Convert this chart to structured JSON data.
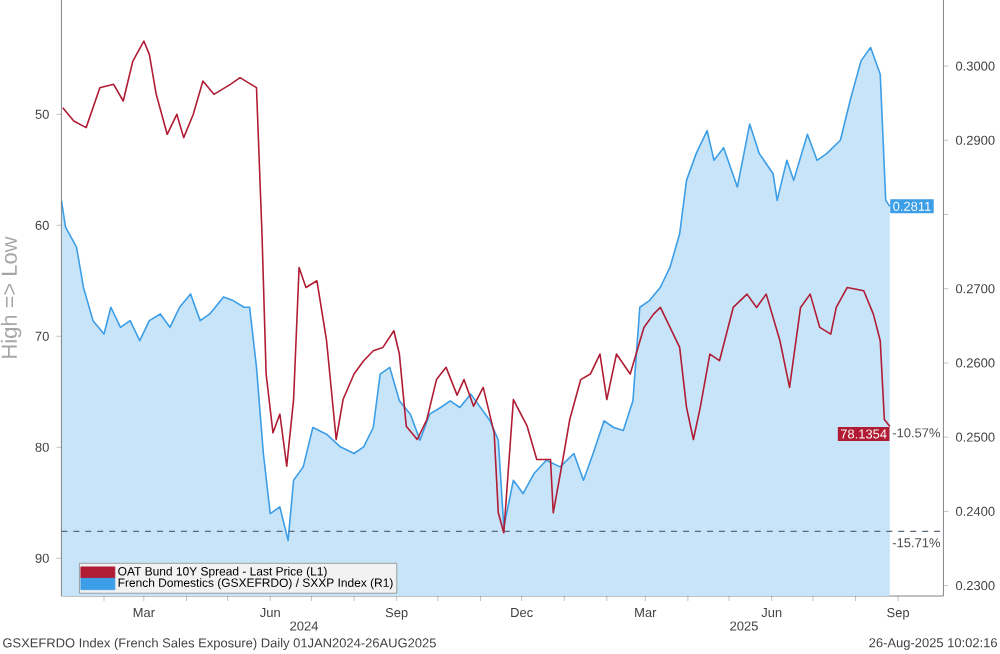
{
  "chart_data": {
    "type": "line",
    "ylabel": "High => Low",
    "xlim": [
      "2024-01-01",
      "2025-10-04"
    ],
    "xticks": [
      {
        "value": "2024-02-01",
        "label": null
      },
      {
        "value": "2024-03-01",
        "label": "Mar"
      },
      {
        "value": "2024-04-01",
        "label": null
      },
      {
        "value": "2024-05-01",
        "label": null
      },
      {
        "value": "2024-06-01",
        "label": "Jun"
      },
      {
        "value": "2024-07-01",
        "label": null
      },
      {
        "value": "2024-08-01",
        "label": null
      },
      {
        "value": "2024-09-01",
        "label": "Sep"
      },
      {
        "value": "2024-10-01",
        "label": null
      },
      {
        "value": "2024-11-01",
        "label": null
      },
      {
        "value": "2024-12-01",
        "label": "Dec"
      },
      {
        "value": "2025-01-01",
        "label": null
      },
      {
        "value": "2025-02-01",
        "label": null
      },
      {
        "value": "2025-03-01",
        "label": "Mar"
      },
      {
        "value": "2025-04-01",
        "label": null
      },
      {
        "value": "2025-05-01",
        "label": null
      },
      {
        "value": "2025-06-01",
        "label": "Jun"
      },
      {
        "value": "2025-07-01",
        "label": null
      },
      {
        "value": "2025-08-01",
        "label": null
      },
      {
        "value": "2025-09-01",
        "label": "Sep"
      }
    ],
    "ylim": [
      93.4,
      39.7
    ],
    "yticks": [
      50,
      60,
      70,
      80,
      90
    ],
    "y2lim": [
      0.2286,
      0.3089
    ],
    "y2ticks": [
      {
        "value": 0.23,
        "label": "0.2300"
      },
      {
        "value": 0.24,
        "label": "0.2400"
      },
      {
        "value": 0.25,
        "label": "0.2500"
      },
      {
        "value": 0.26,
        "label": "0.2600"
      },
      {
        "value": 0.27,
        "label": "0.2700"
      },
      {
        "value": 0.28,
        "label": null
      },
      {
        "value": 0.29,
        "label": "0.2900"
      },
      {
        "value": 0.3,
        "label": "0.3000"
      }
    ],
    "legend": "bottom left",
    "series": [
      {
        "name": "French Domestics (GSXEFRDO) / SXXP Index (R1)",
        "type": "area",
        "axis": "y2",
        "color": "#3c9ee6",
        "x": [
          "2024-01-01",
          "2024-01-04",
          "2024-01-12",
          "2024-01-17",
          "2024-01-24",
          "2024-02-01",
          "2024-02-06",
          "2024-02-13",
          "2024-02-20",
          "2024-02-27",
          "2024-03-05",
          "2024-03-13",
          "2024-03-20",
          "2024-03-27",
          "2024-04-04",
          "2024-04-11",
          "2024-04-18",
          "2024-04-28",
          "2024-05-05",
          "2024-05-13",
          "2024-05-17",
          "2024-05-22",
          "2024-05-27",
          "2024-06-01",
          "2024-06-08",
          "2024-06-14",
          "2024-06-18",
          "2024-06-25",
          "2024-07-02",
          "2024-07-12",
          "2024-07-22",
          "2024-08-01",
          "2024-08-08",
          "2024-08-15",
          "2024-08-20",
          "2024-08-27",
          "2024-09-03",
          "2024-09-11",
          "2024-09-18",
          "2024-09-25",
          "2024-10-03",
          "2024-10-10",
          "2024-10-17",
          "2024-10-25",
          "2024-11-01",
          "2024-11-08",
          "2024-11-14",
          "2024-11-18",
          "2024-11-25",
          "2024-12-02",
          "2024-12-10",
          "2024-12-19",
          "2024-12-29",
          "2025-01-08",
          "2025-01-15",
          "2025-01-22",
          "2025-01-30",
          "2025-02-06",
          "2025-02-13",
          "2025-02-20",
          "2025-02-25",
          "2025-03-04",
          "2025-03-12",
          "2025-03-19",
          "2025-03-26",
          "2025-03-31",
          "2025-04-07",
          "2025-04-15",
          "2025-04-20",
          "2025-04-27",
          "2025-05-07",
          "2025-05-16",
          "2025-05-23",
          "2025-06-02",
          "2025-06-05",
          "2025-06-12",
          "2025-06-17",
          "2025-06-27",
          "2025-07-04",
          "2025-07-11",
          "2025-07-21",
          "2025-07-28",
          "2025-08-05",
          "2025-08-12",
          "2025-08-19",
          "2025-08-23",
          "2025-08-26"
        ],
        "values": [
          0.2819,
          0.2783,
          0.2756,
          0.2702,
          0.2657,
          0.2639,
          0.2675,
          0.2648,
          0.2657,
          0.263,
          0.2657,
          0.2666,
          0.2648,
          0.2675,
          0.2693,
          0.2657,
          0.2666,
          0.2689,
          0.2684,
          0.2675,
          0.2675,
          0.2594,
          0.2478,
          0.2397,
          0.2406,
          0.2361,
          0.2442,
          0.246,
          0.2513,
          0.2504,
          0.2487,
          0.2478,
          0.2487,
          0.2513,
          0.2585,
          0.2594,
          0.2549,
          0.2531,
          0.2496,
          0.2531,
          0.254,
          0.2549,
          0.254,
          0.2558,
          0.254,
          0.2522,
          0.2496,
          0.2379,
          0.2442,
          0.2424,
          0.2451,
          0.2469,
          0.246,
          0.2478,
          0.2442,
          0.2478,
          0.2522,
          0.2513,
          0.2509,
          0.2549,
          0.2675,
          0.2684,
          0.2702,
          0.2729,
          0.2774,
          0.2846,
          0.2882,
          0.2913,
          0.2873,
          0.289,
          0.2837,
          0.2922,
          0.2882,
          0.2855,
          0.2819,
          0.2873,
          0.2846,
          0.2908,
          0.2873,
          0.2882,
          0.29,
          0.2953,
          0.3007,
          0.3025,
          0.2989,
          0.2819,
          0.2811
        ],
        "value_labels": [
          null,
          null,
          null,
          null,
          null,
          null,
          null,
          null,
          null,
          null,
          null,
          null,
          null,
          null,
          null,
          null,
          null,
          null,
          null,
          null,
          null,
          null,
          null,
          null,
          null,
          null,
          null,
          null,
          null,
          null,
          null,
          null,
          null,
          null,
          null,
          null,
          null,
          null,
          null,
          null,
          null,
          null,
          null,
          null,
          null,
          null,
          null,
          null,
          null,
          null,
          null,
          null,
          null,
          null,
          null,
          null,
          null,
          null,
          null,
          null,
          null,
          null,
          null,
          null,
          null,
          null,
          null,
          null,
          null,
          null,
          null,
          null,
          null,
          null,
          null,
          null,
          null,
          null,
          null,
          null,
          null,
          null,
          null,
          null,
          null,
          null,
          "0.2811"
        ]
      },
      {
        "name": "OAT Bund 10Y Spread - Last Price (L1)",
        "color": "#b01c34",
        "x": [
          "2024-01-02",
          "2024-01-10",
          "2024-01-19",
          "2024-01-29",
          "2024-02-08",
          "2024-02-15",
          "2024-02-22",
          "2024-03-01",
          "2024-03-05",
          "2024-03-10",
          "2024-03-18",
          "2024-03-25",
          "2024-03-30",
          "2024-04-06",
          "2024-04-13",
          "2024-04-21",
          "2024-05-03",
          "2024-05-10",
          "2024-05-22",
          "2024-05-26",
          "2024-05-29",
          "2024-06-03",
          "2024-06-08",
          "2024-06-13",
          "2024-06-18",
          "2024-06-22",
          "2024-06-27",
          "2024-07-05",
          "2024-07-12",
          "2024-07-19",
          "2024-07-24",
          "2024-08-01",
          "2024-08-08",
          "2024-08-15",
          "2024-08-22",
          "2024-08-30",
          "2024-09-03",
          "2024-09-08",
          "2024-09-16",
          "2024-09-23",
          "2024-09-30",
          "2024-10-07",
          "2024-10-15",
          "2024-10-20",
          "2024-10-27",
          "2024-11-03",
          "2024-11-11",
          "2024-11-14",
          "2024-11-18",
          "2024-11-25",
          "2024-12-05",
          "2024-12-12",
          "2024-12-22",
          "2024-12-24",
          "2024-12-31",
          "2025-01-05",
          "2025-01-13",
          "2025-01-20",
          "2025-01-27",
          "2025-02-01",
          "2025-02-08",
          "2025-02-18",
          "2025-02-28",
          "2025-03-07",
          "2025-03-12",
          "2025-03-19",
          "2025-03-26",
          "2025-03-31",
          "2025-04-05",
          "2025-04-10",
          "2025-04-17",
          "2025-04-24",
          "2025-05-04",
          "2025-05-14",
          "2025-05-21",
          "2025-05-28",
          "2025-06-07",
          "2025-06-14",
          "2025-06-22",
          "2025-06-29",
          "2025-07-06",
          "2025-07-14",
          "2025-07-18",
          "2025-07-26",
          "2025-08-07",
          "2025-08-14",
          "2025-08-19",
          "2025-08-22",
          "2025-08-26"
        ],
        "values": [
          49.4,
          50.6,
          51.2,
          47.6,
          47.3,
          48.8,
          45.2,
          43.4,
          44.6,
          48.2,
          51.8,
          50.0,
          52.1,
          50.0,
          47.0,
          48.2,
          47.3,
          46.7,
          47.6,
          60.8,
          73.4,
          78.7,
          77.0,
          81.7,
          75.7,
          63.8,
          65.6,
          65.0,
          70.4,
          79.3,
          75.7,
          73.4,
          72.2,
          71.3,
          71.0,
          69.5,
          71.6,
          78.1,
          79.3,
          77.5,
          73.9,
          72.8,
          75.3,
          73.9,
          76.3,
          74.6,
          78.7,
          85.9,
          87.7,
          75.7,
          78.1,
          81.1,
          81.1,
          85.9,
          81.1,
          77.5,
          73.9,
          73.4,
          71.6,
          75.7,
          71.6,
          73.4,
          69.2,
          68.0,
          67.4,
          69.2,
          71.0,
          76.4,
          79.3,
          76.4,
          71.6,
          72.2,
          67.4,
          66.2,
          67.4,
          66.2,
          70.4,
          74.6,
          67.4,
          66.2,
          69.2,
          69.8,
          67.4,
          65.6,
          65.9,
          68.0,
          70.4,
          77.5,
          78.1354
        ],
        "value_labels": [
          null,
          null,
          null,
          null,
          null,
          null,
          null,
          null,
          null,
          null,
          null,
          null,
          null,
          null,
          null,
          null,
          null,
          null,
          null,
          null,
          null,
          null,
          null,
          null,
          null,
          null,
          null,
          null,
          null,
          null,
          null,
          null,
          null,
          null,
          null,
          null,
          null,
          null,
          null,
          null,
          null,
          null,
          null,
          null,
          null,
          null,
          null,
          null,
          null,
          null,
          null,
          null,
          null,
          null,
          null,
          null,
          null,
          null,
          null,
          null,
          null,
          null,
          null,
          null,
          null,
          null,
          null,
          null,
          null,
          null,
          null,
          null,
          null,
          null,
          null,
          null,
          null,
          null,
          null,
          null,
          null,
          null,
          null,
          null,
          null,
          null,
          null,
          null,
          "78.1354"
        ]
      }
    ],
    "ref_lines": [
      {
        "axis": "y2",
        "value": 0.2373,
        "color": "#5a6a7a",
        "line_style": "dashed"
      }
    ],
    "annotations": [
      "2024",
      "2025",
      "GSXEFRDO Index (French Sales Exposure)   Daily 01JAN2024-26AUG2025",
      "26-Aug-2025 10:02:16",
      {
        "text": "-10.57%",
        "x": "2025-08-26",
        "y": 78.7
      },
      {
        "text": "-15.71%",
        "x": "2025-08-26",
        "y": 88.6
      }
    ]
  }
}
